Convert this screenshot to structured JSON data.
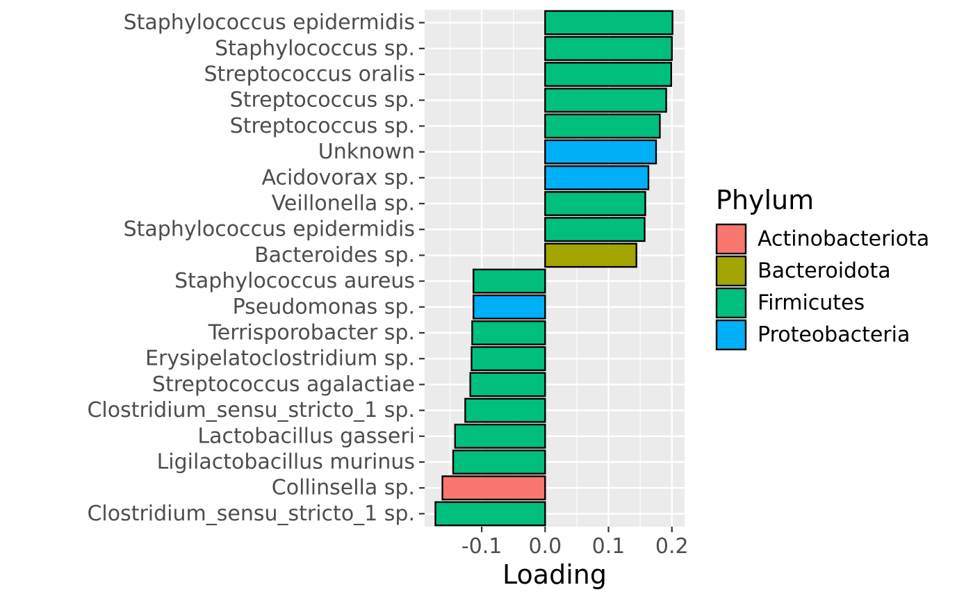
{
  "chart_data": {
    "type": "bar",
    "orientation": "horizontal",
    "xlabel": "Loading",
    "ylabel": "",
    "xlim": [
      -0.19,
      0.22
    ],
    "xticks": [
      -0.1,
      0.0,
      0.1,
      0.2
    ],
    "xtick_labels": [
      "-0.1",
      "0.0",
      "0.1",
      "0.2"
    ],
    "grid": true,
    "categories": [
      "Staphylococcus epidermidis",
      "Staphylococcus sp.",
      "Streptococcus oralis",
      "Streptococcus sp.",
      "Streptococcus sp.",
      "Unknown",
      "Acidovorax sp.",
      "Veillonella sp.",
      "Staphylococcus epidermidis",
      "Bacteroides sp.",
      "Staphylococcus aureus",
      "Pseudomonas sp.",
      "Terrisporobacter sp.",
      "Erysipelatoclostridium sp.",
      "Streptococcus agalactiae",
      "Clostridium_sensu_stricto_1 sp.",
      "Lactobacillus gasseri",
      "Ligilactobacillus murinus",
      "Collinsella sp.",
      "Clostridium_sensu_stricto_1 sp."
    ],
    "values": [
      0.201,
      0.2,
      0.199,
      0.191,
      0.181,
      0.175,
      0.163,
      0.158,
      0.157,
      0.144,
      -0.113,
      -0.113,
      -0.115,
      -0.116,
      -0.118,
      -0.126,
      -0.142,
      -0.145,
      -0.162,
      -0.173
    ],
    "phylum": [
      "Firmicutes",
      "Firmicutes",
      "Firmicutes",
      "Firmicutes",
      "Firmicutes",
      "Proteobacteria",
      "Proteobacteria",
      "Firmicutes",
      "Firmicutes",
      "Bacteroidota",
      "Firmicutes",
      "Proteobacteria",
      "Firmicutes",
      "Firmicutes",
      "Firmicutes",
      "Firmicutes",
      "Firmicutes",
      "Firmicutes",
      "Actinobacteriota",
      "Firmicutes"
    ],
    "legend": {
      "title": "Phylum",
      "position": "right",
      "entries": [
        {
          "label": "Actinobacteriota",
          "color": "#F8766D"
        },
        {
          "label": "Bacteroidota",
          "color": "#A3A500"
        },
        {
          "label": "Firmicutes",
          "color": "#00BF7D"
        },
        {
          "label": "Proteobacteria",
          "color": "#00B0F6"
        }
      ]
    },
    "panel_background": "#EBEBEB",
    "grid_color": "#FFFFFF",
    "bar_outline": "#000000"
  }
}
